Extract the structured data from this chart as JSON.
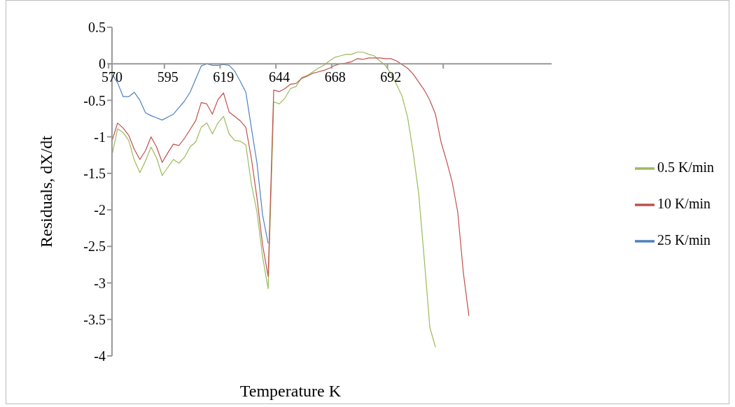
{
  "chart_data": {
    "type": "line",
    "xlabel": "Temperature K",
    "ylabel": "Residuals, dX/dt",
    "categories": [
      "570",
      null,
      null,
      null,
      null,
      null,
      null,
      null,
      null,
      null,
      "595",
      null,
      null,
      null,
      null,
      null,
      null,
      null,
      null,
      null,
      "619",
      null,
      null,
      null,
      null,
      null,
      null,
      null,
      null,
      null,
      "644",
      null,
      null,
      null,
      null,
      null,
      null,
      null,
      null,
      null,
      "668",
      null,
      null,
      null,
      null,
      null,
      null,
      null,
      null,
      null,
      "692",
      null,
      null,
      null,
      null,
      null,
      null,
      null,
      null,
      null,
      null,
      null,
      null,
      null,
      null
    ],
    "series": [
      {
        "name": "0.5 K/min",
        "color": "#9bbb59",
        "values": [
          -1.25,
          -0.89,
          -0.94,
          -1.05,
          -1.32,
          -1.49,
          -1.33,
          -1.14,
          -1.29,
          -1.53,
          -1.42,
          -1.31,
          -1.36,
          -1.28,
          -1.14,
          -1.07,
          -0.87,
          -0.81,
          -0.96,
          -0.81,
          -0.72,
          -0.96,
          -1.05,
          -1.06,
          -1.11,
          -1.65,
          -2.03,
          -2.64,
          -3.08,
          -0.52,
          -0.55,
          -0.47,
          -0.34,
          -0.31,
          -0.19,
          -0.16,
          -0.11,
          -0.06,
          -0.02,
          0.04,
          0.09,
          0.11,
          0.13,
          0.13,
          0.16,
          0.16,
          0.13,
          0.11,
          0.04,
          -0.02,
          -0.13,
          -0.28,
          -0.44,
          -0.73,
          -1.21,
          -1.78,
          -2.68,
          -3.61,
          -3.88,
          null,
          null,
          null,
          null,
          null,
          null
        ]
      },
      {
        "name": "10 K/min",
        "color": "#c0504d",
        "values": [
          -1.06,
          -0.81,
          -0.88,
          -0.98,
          -1.17,
          -1.31,
          -1.19,
          -1.0,
          -1.14,
          -1.35,
          -1.22,
          -1.1,
          -1.12,
          -1.02,
          -0.9,
          -0.78,
          -0.53,
          -0.55,
          -0.69,
          -0.49,
          -0.4,
          -0.66,
          -0.72,
          -0.78,
          -0.87,
          -1.3,
          -1.84,
          -2.48,
          -2.91,
          -0.36,
          -0.38,
          -0.34,
          -0.28,
          -0.27,
          -0.2,
          -0.17,
          -0.13,
          -0.11,
          -0.09,
          -0.06,
          -0.02,
          0.0,
          0.01,
          0.03,
          0.07,
          0.06,
          0.08,
          0.08,
          0.08,
          0.07,
          0.07,
          0.04,
          -0.01,
          -0.06,
          -0.14,
          -0.25,
          -0.36,
          -0.5,
          -0.69,
          -1.07,
          -1.33,
          -1.62,
          -2.03,
          -2.86,
          -3.45
        ]
      },
      {
        "name": "25 K/min",
        "color": "#4f81bd",
        "values": [
          -0.14,
          -0.26,
          -0.45,
          -0.45,
          -0.39,
          -0.5,
          -0.67,
          -0.71,
          -0.74,
          -0.77,
          -0.73,
          -0.69,
          -0.6,
          -0.51,
          -0.39,
          -0.21,
          -0.03,
          0.0,
          -0.02,
          -0.02,
          -0.01,
          -0.02,
          -0.1,
          -0.24,
          -0.39,
          -0.88,
          -1.36,
          -2.07,
          -2.46,
          null,
          null,
          null,
          null,
          null,
          null,
          null,
          null,
          null,
          null,
          null,
          null,
          null,
          null,
          null,
          null,
          null,
          null,
          null,
          null,
          null,
          null,
          null,
          null,
          null,
          null,
          null,
          null,
          null,
          null,
          null,
          null,
          null,
          null,
          null,
          null
        ]
      }
    ],
    "ylim": [
      -4,
      0.5
    ],
    "yticks": [
      0.5,
      0,
      -0.5,
      -1,
      -1.5,
      -2,
      -2.5,
      -3,
      -3.5,
      -4
    ],
    "grid": false,
    "legend": "right",
    "marker": "none",
    "line_style": "solid"
  }
}
